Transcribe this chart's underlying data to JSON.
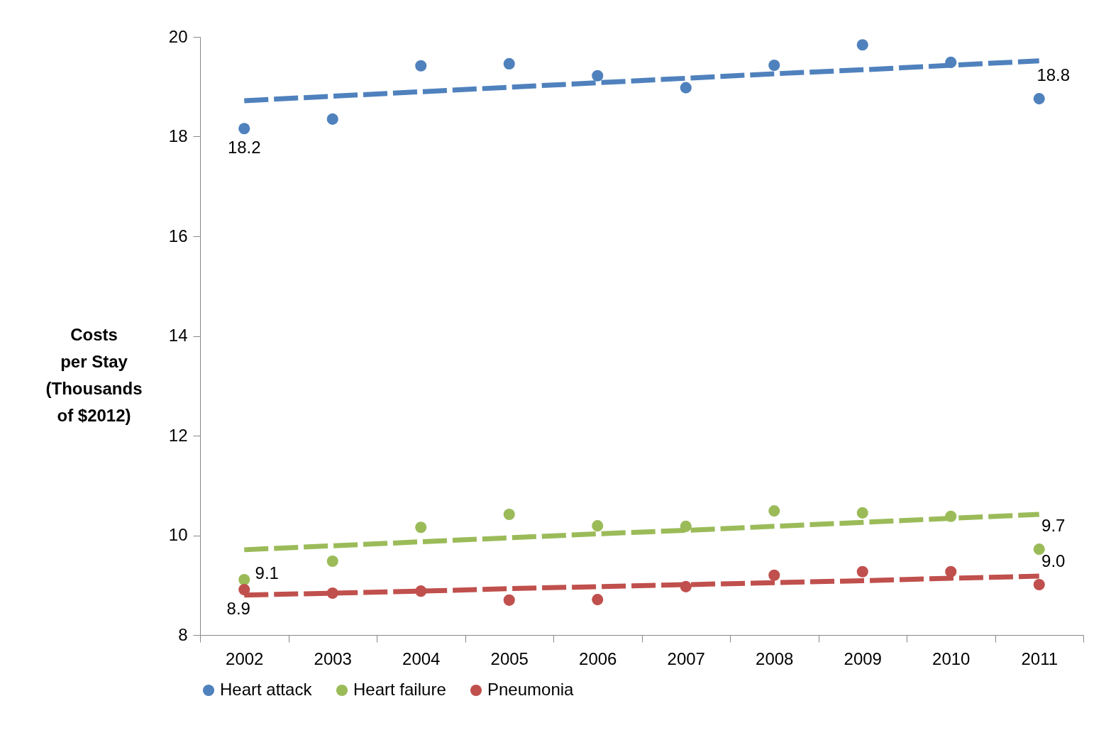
{
  "chart_data": {
    "type": "scatter",
    "ylabel": "Costs per Stay (Thousands of $2012)",
    "categories": [
      "2002",
      "2003",
      "2004",
      "2005",
      "2006",
      "2007",
      "2008",
      "2009",
      "2010",
      "2011"
    ],
    "ylim": [
      8,
      20
    ],
    "yticks": [
      8,
      10,
      12,
      14,
      16,
      18,
      20
    ],
    "grid": false,
    "legend": "bottom",
    "marker": "circle",
    "series": [
      {
        "name": "Heart attack",
        "color": "#4f81bd",
        "values": [
          18.16,
          18.35,
          19.42,
          19.46,
          19.22,
          18.98,
          19.43,
          19.84,
          19.49,
          18.76
        ],
        "value_labels": [
          "18.2",
          null,
          null,
          null,
          null,
          null,
          null,
          null,
          null,
          "18.8"
        ]
      },
      {
        "name": "Heart failure",
        "color": "#9bbb59",
        "values": [
          9.11,
          9.48,
          10.16,
          10.42,
          10.19,
          10.18,
          10.49,
          10.45,
          10.38,
          9.72
        ],
        "value_labels": [
          "9.1",
          null,
          null,
          null,
          null,
          null,
          null,
          null,
          null,
          "9.7"
        ]
      },
      {
        "name": "Pneumonia",
        "color": "#c0504d",
        "values": [
          8.91,
          8.84,
          8.88,
          8.7,
          8.71,
          8.97,
          9.2,
          9.27,
          9.27,
          9.01
        ],
        "value_labels": [
          "8.9",
          null,
          null,
          null,
          null,
          null,
          null,
          null,
          null,
          "9.0"
        ]
      },
      {
        "type": "line",
        "line_style": "dashed",
        "marker": "none",
        "color": "#4f81bd",
        "values": [
          18.72,
          18.81,
          18.9,
          18.99,
          19.08,
          19.17,
          19.26,
          19.34,
          19.43,
          19.52
        ]
      },
      {
        "type": "line",
        "line_style": "dashed",
        "marker": "none",
        "color": "#9bbb59",
        "values": [
          9.71,
          9.79,
          9.87,
          9.95,
          10.03,
          10.1,
          10.18,
          10.26,
          10.34,
          10.42
        ]
      },
      {
        "type": "line",
        "line_style": "dashed",
        "marker": "none",
        "color": "#c0504d",
        "values": [
          8.8,
          8.84,
          8.88,
          8.93,
          8.97,
          9.01,
          9.05,
          9.09,
          9.14,
          9.18
        ]
      }
    ]
  }
}
